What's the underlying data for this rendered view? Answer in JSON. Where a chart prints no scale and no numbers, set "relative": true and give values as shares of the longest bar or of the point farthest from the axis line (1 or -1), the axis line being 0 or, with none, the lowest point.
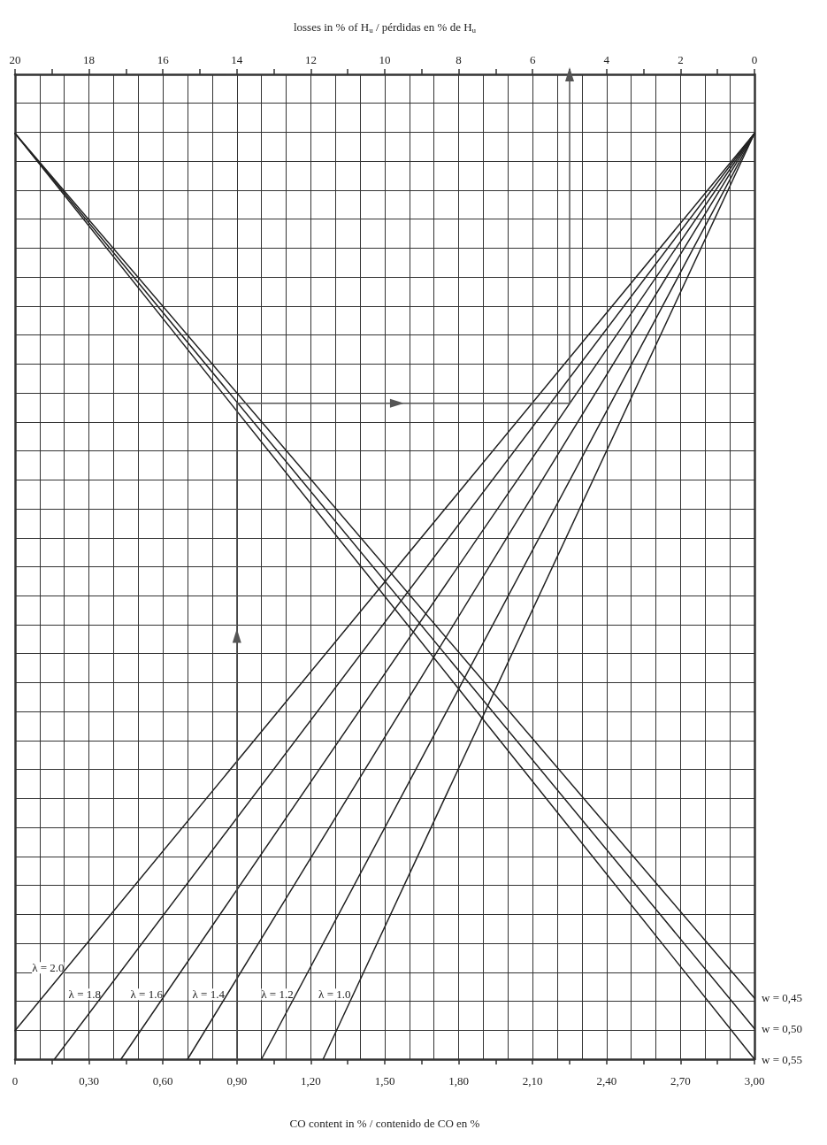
{
  "chart_data": {
    "type": "line",
    "relative": true,
    "xlabel": "CO content in % / contenido de CO en %",
    "x2label": "losses in % of H$_{u}$ / pérdidas en % de H$_{u}$",
    "xlim": [
      0,
      3
    ],
    "xticks": [
      0,
      {
        "value": 0.15,
        "label": null
      },
      {
        "value": 0.3,
        "label": "0,30"
      },
      {
        "value": 0.45,
        "label": null
      },
      {
        "value": 0.6,
        "label": "0,60"
      },
      {
        "value": 0.75,
        "label": null
      },
      {
        "value": 0.9,
        "label": "0,90"
      },
      {
        "value": 1.05,
        "label": null
      },
      {
        "value": 1.2,
        "label": "1,20"
      },
      {
        "value": 1.35,
        "label": null
      },
      {
        "value": 1.5,
        "label": "1,50"
      },
      {
        "value": 1.65,
        "label": null
      },
      {
        "value": 1.8,
        "label": "1,80"
      },
      {
        "value": 1.95,
        "label": null
      },
      {
        "value": 2.1,
        "label": "2,10"
      },
      {
        "value": 2.25,
        "label": null
      },
      {
        "value": 2.4,
        "label": "2,40"
      },
      {
        "value": 2.55,
        "label": null
      },
      {
        "value": 2.7,
        "label": "2,70"
      },
      {
        "value": 2.85,
        "label": null
      },
      {
        "value": 3,
        "label": "3,00"
      }
    ],
    "x2lim": [
      20,
      0
    ],
    "x2ticks": [
      20,
      {
        "value": 19,
        "label": null
      },
      18,
      {
        "value": 17,
        "label": null
      },
      16,
      {
        "value": 15,
        "label": null
      },
      14,
      {
        "value": 13,
        "label": null
      },
      12,
      {
        "value": 11,
        "label": null
      },
      10,
      {
        "value": 9,
        "label": null
      },
      8,
      {
        "value": 7,
        "label": null
      },
      6,
      {
        "value": 5,
        "label": null
      },
      4,
      {
        "value": 3,
        "label": null
      },
      2,
      {
        "value": 1,
        "label": null
      },
      0
    ],
    "grid": true,
    "legend": false,
    "marker": "none",
    "line_style": "solid",
    "series": [
      {
        "name": "λ = 2.0",
        "color": "#222222",
        "x": [
          0,
          3
        ],
        "values": [
          0.029,
          0.94
        ]
      },
      {
        "name": "λ = 1.8",
        "color": "#222222",
        "x": [
          0.16,
          3
        ],
        "values": [
          0,
          0.94
        ]
      },
      {
        "name": "λ = 1.6",
        "color": "#222222",
        "x": [
          0.43,
          3
        ],
        "values": [
          0,
          0.94
        ]
      },
      {
        "name": "λ = 1.4",
        "color": "#222222",
        "x": [
          0.7,
          3
        ],
        "values": [
          0,
          0.94
        ]
      },
      {
        "name": "λ = 1.2",
        "color": "#222222",
        "x": [
          1.0,
          3
        ],
        "values": [
          0,
          0.94
        ]
      },
      {
        "name": "λ = 1.0",
        "color": "#222222",
        "x": [
          1.25,
          3
        ],
        "values": [
          0,
          0.94
        ]
      },
      {
        "name": "w = 0,45",
        "color": "#222222",
        "axis": "x2",
        "x": [
          20,
          0
        ],
        "values": [
          0.94,
          0.062
        ]
      },
      {
        "name": "w = 0,50",
        "color": "#222222",
        "axis": "x2",
        "x": [
          20,
          0
        ],
        "values": [
          0.94,
          0.031
        ]
      },
      {
        "name": "w = 0,55",
        "color": "#222222",
        "axis": "x2",
        "x": [
          20,
          0
        ],
        "values": [
          0.94,
          0
        ]
      },
      {
        "color": "#555555",
        "marker": "triangle",
        "x": [
          0.9,
          0.9,
          0.9,
          1.55,
          2.25,
          2.25
        ],
        "values": [
          0,
          0.43,
          0.666,
          0.666,
          0.666,
          1
        ]
      }
    ]
  }
}
